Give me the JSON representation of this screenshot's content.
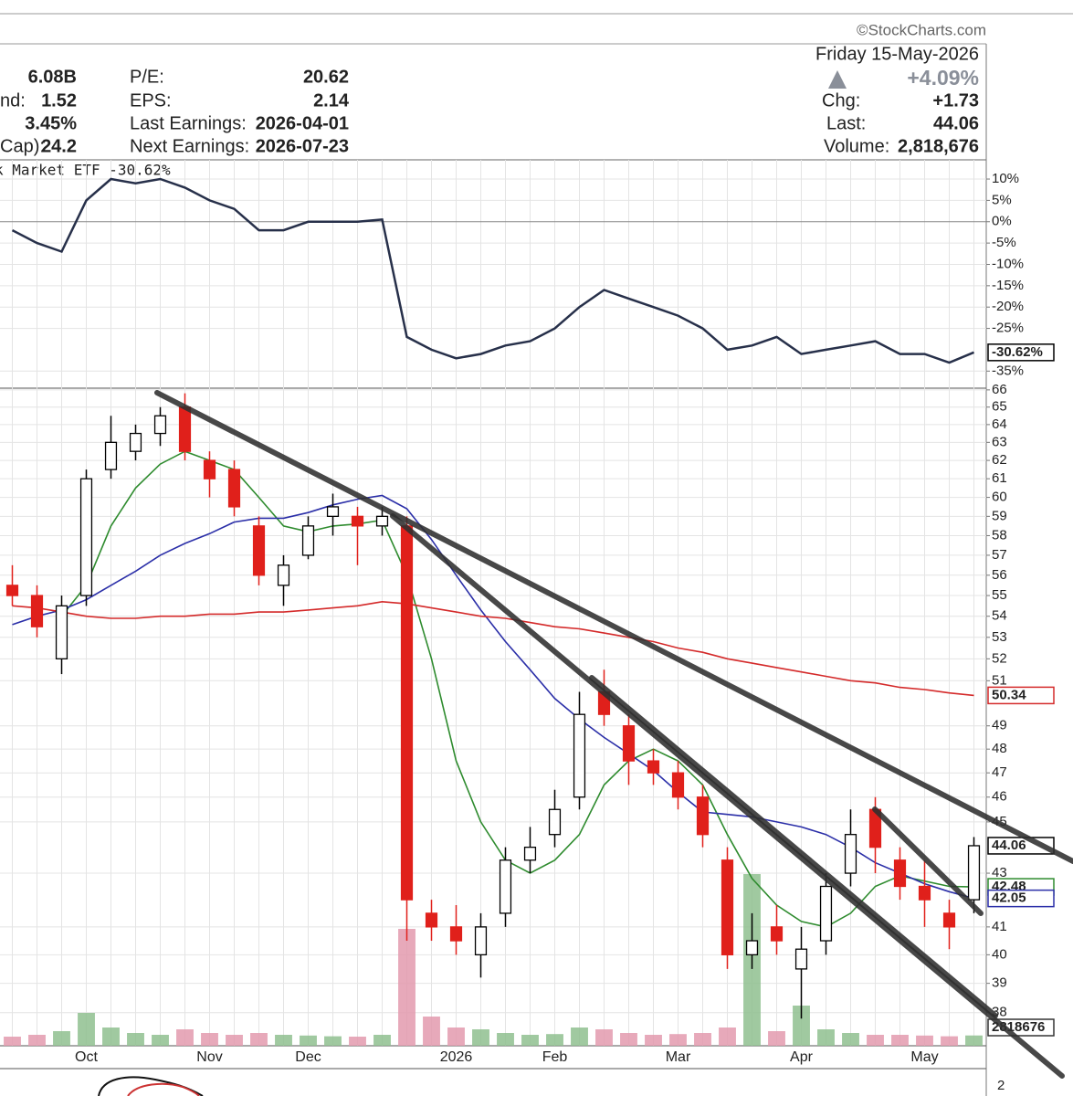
{
  "header": {
    "copyright": "©StockCharts.com",
    "date": "Friday 15-May-2026",
    "pct_change": "+4.09%",
    "left": [
      {
        "value": "6.08B"
      },
      {
        "label": "nd:",
        "value": "1.52"
      },
      {
        "value": "3.45%"
      },
      {
        "label": "Cap):",
        "value": "24.2"
      }
    ],
    "middle": [
      {
        "label": "P/E:",
        "value": "20.62"
      },
      {
        "label": "EPS:",
        "value": "2.14"
      },
      {
        "label": "Last Earnings:",
        "value": "2026-04-01"
      },
      {
        "label": "Next Earnings:",
        "value": "2026-07-23"
      }
    ],
    "right": [
      {
        "label": "Chg:",
        "value": "+1.73"
      },
      {
        "label": "Last:",
        "value": "44.06"
      },
      {
        "label": "Volume:",
        "value": "2,818,676"
      }
    ]
  },
  "chart_data": {
    "type": "candlestick",
    "categories": [
      null,
      null,
      null,
      "Oct",
      null,
      null,
      null,
      null,
      "Nov",
      null,
      null,
      null,
      "Dec",
      null,
      null,
      null,
      null,
      null,
      "2026",
      null,
      null,
      null,
      "Feb",
      null,
      null,
      null,
      null,
      "Mar",
      null,
      null,
      null,
      null,
      "Apr",
      null,
      null,
      null,
      null,
      "May",
      null,
      null
    ],
    "log_scale": true,
    "grid": true,
    "ylim": [
      36.9,
      66.1
    ],
    "yticks": [
      66,
      65,
      64,
      63,
      62,
      61,
      60,
      59,
      58,
      57,
      56,
      55,
      54,
      53,
      52,
      51,
      49,
      48,
      47,
      46,
      45,
      43,
      41,
      40,
      39,
      38
    ],
    "up_color": "#000000",
    "down_color": "#e0201b",
    "open": [
      55.5,
      55,
      52,
      55,
      61.5,
      62.5,
      63.5,
      65,
      62,
      61.5,
      58.5,
      55.5,
      57,
      59,
      59,
      58.5,
      58.5,
      41.5,
      41,
      40,
      41.5,
      43.5,
      44.5,
      46,
      50.5,
      49,
      47.5,
      47,
      46,
      43.5,
      40,
      41,
      39.5,
      40.5,
      43,
      45.5,
      43.5,
      42.5,
      41.5,
      42
    ],
    "high": [
      56.5,
      55.5,
      55,
      61.5,
      64.5,
      64,
      65,
      65.8,
      62.5,
      62,
      59,
      57,
      59,
      60.2,
      59.5,
      59.5,
      59,
      42,
      41.8,
      41.5,
      44,
      44.8,
      46.3,
      50.5,
      51.5,
      49.5,
      48,
      47.5,
      46.5,
      44,
      41.5,
      41.8,
      41,
      43,
      45.5,
      46,
      44,
      43.5,
      42,
      44.4
    ],
    "low": [
      54.5,
      53,
      51.3,
      54.5,
      61,
      62,
      62.8,
      62,
      60,
      59,
      55.5,
      54.5,
      56.8,
      58,
      56.5,
      58,
      40.5,
      40.5,
      40,
      39.2,
      41,
      43,
      44,
      45.5,
      49,
      46.5,
      46.5,
      45.5,
      44,
      39.5,
      39.5,
      40,
      37.8,
      40,
      42.5,
      43,
      42,
      41,
      40.2,
      41.5
    ],
    "close": [
      55,
      53.5,
      54.5,
      61,
      63,
      63.5,
      64.5,
      62.5,
      61,
      59.5,
      56,
      56.5,
      58.5,
      59.5,
      58.5,
      59,
      42,
      41,
      40.5,
      41,
      43.5,
      44,
      45.5,
      49.5,
      49.5,
      47.5,
      47,
      46,
      44.5,
      40,
      40.5,
      40.5,
      40.2,
      42.5,
      44.5,
      44,
      42.5,
      42,
      41,
      44.06
    ],
    "overlays": [
      {
        "color": "#2e8b2e",
        "values": [
          null,
          null,
          54,
          55.5,
          58.5,
          60.5,
          61.8,
          62.5,
          62,
          61.5,
          60,
          58.5,
          58.2,
          58.5,
          58.6,
          58.8,
          56,
          52,
          47.5,
          45,
          43.5,
          43,
          43.5,
          44.5,
          46.5,
          47.5,
          48,
          47.5,
          46.5,
          44.5,
          42.8,
          41.8,
          41.2,
          41,
          41.5,
          42.5,
          42.9,
          42.7,
          42.5,
          42.48
        ]
      },
      {
        "color": "#2b2fa8",
        "values": [
          53.6,
          54,
          54.3,
          54.8,
          55.5,
          56.2,
          57,
          57.6,
          58.1,
          58.7,
          58.9,
          58.9,
          59.2,
          59.6,
          59.9,
          60.1,
          59.4,
          57.8,
          56,
          54.3,
          52.8,
          51.5,
          50.2,
          49.3,
          48.5,
          47.8,
          47.1,
          46.2,
          45.4,
          45.3,
          45.2,
          45,
          44.8,
          44.5,
          44,
          43.4,
          43,
          42.6,
          42.3,
          42.05
        ]
      },
      {
        "color": "#d42a2a",
        "values": [
          54.5,
          54.4,
          54.2,
          54,
          53.9,
          53.9,
          54,
          54,
          54.1,
          54.1,
          54.2,
          54.2,
          54.3,
          54.4,
          54.5,
          54.7,
          54.6,
          54.4,
          54.2,
          54,
          53.9,
          53.7,
          53.5,
          53.4,
          53.2,
          53,
          52.8,
          52.5,
          52.3,
          52,
          51.8,
          51.6,
          51.4,
          51.2,
          51,
          50.9,
          50.7,
          50.6,
          50.45,
          50.34
        ]
      }
    ],
    "volume": {
      "up_color": "#8fbf8f",
      "down_color": "#e39aae",
      "values": [
        2500000,
        3000000,
        4000000,
        9000000,
        5000000,
        3500000,
        3000000,
        4500000,
        3500000,
        3000000,
        3500000,
        3000000,
        2800000,
        2600000,
        2500000,
        3000000,
        32000000,
        8000000,
        5000000,
        4500000,
        3500000,
        3000000,
        3200000,
        5000000,
        4500000,
        3500000,
        3000000,
        3200000,
        3500000,
        5000000,
        47000000,
        4000000,
        11000000,
        4500000,
        3500000,
        3000000,
        3000000,
        2800000,
        2600000,
        2818676
      ]
    },
    "relative": {
      "label": "k Market ETF -30.62%",
      "color": "#27304a",
      "values": [
        -2,
        -5,
        -7,
        5,
        10,
        9,
        10,
        8,
        5,
        3,
        -2,
        -2,
        0,
        0,
        0,
        0.5,
        -27,
        -30,
        -32,
        -31,
        -29,
        -28,
        -25,
        -20,
        -16,
        -18,
        -20,
        -22,
        -25,
        -30,
        -29,
        -27,
        -31,
        -30,
        -29,
        -28,
        -31,
        -31,
        -33,
        -30.62
      ],
      "value_labels": [
        null,
        null,
        null,
        null,
        null,
        null,
        null,
        null,
        null,
        null,
        null,
        null,
        null,
        null,
        null,
        null,
        null,
        null,
        null,
        null,
        null,
        null,
        null,
        null,
        null,
        null,
        null,
        null,
        null,
        null,
        null,
        null,
        null,
        null,
        null,
        null,
        null,
        null,
        null,
        "-30.62%"
      ],
      "ylim": [
        -39,
        14.5
      ],
      "yticks": [
        {
          "value": 10,
          "label": "10%"
        },
        {
          "value": 5,
          "label": "5%"
        },
        {
          "value": 0,
          "label": "0%"
        },
        {
          "value": -5,
          "label": "-5%"
        },
        {
          "value": -10,
          "label": "-10%"
        },
        {
          "value": -15,
          "label": "-15%"
        },
        {
          "value": -20,
          "label": "-20%"
        },
        {
          "value": -25,
          "label": "-25%"
        },
        {
          "value": -35,
          "label": "-35%"
        }
      ]
    }
  },
  "lower_panel": {
    "tick_label": "2"
  }
}
